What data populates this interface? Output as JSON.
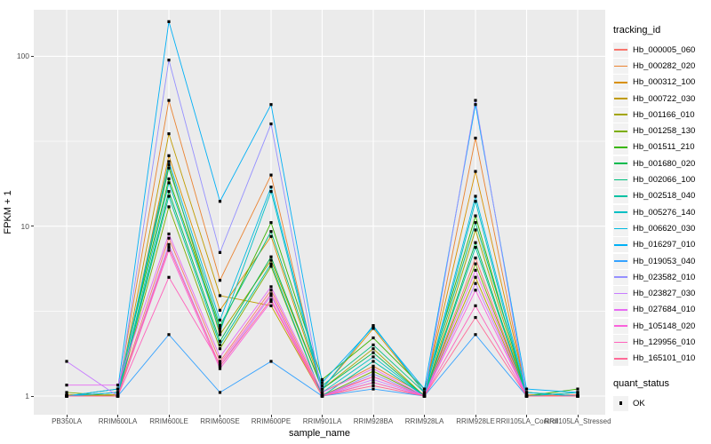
{
  "chart_data": {
    "type": "line",
    "title": "",
    "xlabel": "sample_name",
    "ylabel": "FPKM + 1",
    "y_scale": "log10",
    "y_ticks": [
      {
        "value": 1,
        "label": "1"
      },
      {
        "value": 10,
        "label": "10"
      },
      {
        "value": 100,
        "label": "100"
      }
    ],
    "y_minor_ticks": [
      3.1623,
      31.623
    ],
    "ylim_top_value": 188,
    "grid": true,
    "panel_bg": "#EBEBEB",
    "grid_color": "#FFFFFF",
    "point_color": "#000000",
    "tick_color": "#333333",
    "tick_label_color": "#4D4D4D",
    "categories": [
      "PB350LA",
      "RRIM600LA",
      "RRIM600LE",
      "RRIM600SE",
      "RRIM600PE",
      "RRIM901LA",
      "RRIM928BA",
      "RRIM928LA",
      "RRIM928LE",
      "RRII105LA_Control",
      "RRII105LA_Stressed"
    ],
    "legend_title": "tracking_id",
    "legend_position": "right",
    "series": [
      {
        "name": "Hb_000005_060",
        "color": "#F8766D",
        "values": [
          1.0,
          1.02,
          8.5,
          1.6,
          4.2,
          1.02,
          1.3,
          1.0,
          6.5,
          1.0,
          1.02
        ]
      },
      {
        "name": "Hb_000282_020",
        "color": "#EA8331",
        "values": [
          1.0,
          1.05,
          55,
          4.8,
          20,
          1.05,
          1.5,
          1.02,
          33,
          1.02,
          1.0
        ]
      },
      {
        "name": "Hb_000312_100",
        "color": "#D89000",
        "values": [
          1.02,
          1.0,
          26,
          3.2,
          8.7,
          1.1,
          2.5,
          1.05,
          21,
          1.05,
          1.0
        ]
      },
      {
        "name": "Hb_000722_030",
        "color": "#C09B00",
        "values": [
          1.0,
          1.0,
          35,
          3.9,
          3.4,
          1.0,
          1.2,
          1.0,
          5.0,
          1.0,
          1.0
        ]
      },
      {
        "name": "Hb_001166_010",
        "color": "#A3A500",
        "values": [
          1.0,
          1.02,
          23,
          2.3,
          6.3,
          1.1,
          1.9,
          1.0,
          9.5,
          1.0,
          1.05
        ]
      },
      {
        "name": "Hb_001258_130",
        "color": "#7CAE00",
        "values": [
          1.05,
          1.0,
          13,
          1.9,
          5.8,
          1.0,
          1.4,
          1.0,
          6.0,
          1.0,
          1.0
        ]
      },
      {
        "name": "Hb_001511_210",
        "color": "#39B600",
        "values": [
          1.0,
          1.1,
          19,
          2.5,
          10.5,
          1.25,
          2.2,
          1.1,
          11.5,
          1.0,
          1.1
        ]
      },
      {
        "name": "Hb_001680_020",
        "color": "#00BB4E",
        "values": [
          1.0,
          1.0,
          16,
          2.1,
          6.6,
          1.1,
          1.8,
          1.0,
          8.0,
          1.0,
          1.0
        ]
      },
      {
        "name": "Hb_002066_100",
        "color": "#00BF7D",
        "values": [
          1.0,
          1.05,
          22,
          2.6,
          9.3,
          1.15,
          2.0,
          1.05,
          10.5,
          1.05,
          1.0
        ]
      },
      {
        "name": "Hb_002518_040",
        "color": "#00C1A3",
        "values": [
          1.0,
          1.0,
          15,
          2.0,
          6.0,
          1.0,
          1.6,
          1.0,
          7.5,
          1.0,
          1.0
        ]
      },
      {
        "name": "Hb_005276_140",
        "color": "#00BFC4",
        "values": [
          1.0,
          1.0,
          18,
          2.4,
          16,
          1.05,
          1.7,
          1.0,
          14,
          1.0,
          1.05
        ]
      },
      {
        "name": "Hb_006620_030",
        "color": "#00BAE0",
        "values": [
          1.0,
          1.05,
          24,
          2.8,
          17,
          1.1,
          2.6,
          1.05,
          15,
          1.05,
          1.0
        ]
      },
      {
        "name": "Hb_016297_010",
        "color": "#00B0F6",
        "values": [
          1.0,
          1.1,
          160,
          14.0,
          52,
          1.2,
          2.55,
          1.1,
          52,
          1.1,
          1.05
        ]
      },
      {
        "name": "Hb_019053_040",
        "color": "#35A2FF",
        "values": [
          1.0,
          1.0,
          2.3,
          1.05,
          1.6,
          1.0,
          1.1,
          1.0,
          2.3,
          1.0,
          1.0
        ]
      },
      {
        "name": "Hb_023582_010",
        "color": "#9590FF",
        "values": [
          1.0,
          1.0,
          95,
          7.0,
          40,
          1.0,
          1.35,
          1.0,
          55,
          1.0,
          1.0
        ]
      },
      {
        "name": "Hb_023827_030",
        "color": "#C77CFF",
        "values": [
          1.6,
          1.0,
          7.8,
          1.5,
          3.9,
          1.0,
          1.25,
          1.0,
          4.6,
          1.0,
          1.0
        ]
      },
      {
        "name": "Hb_027684_010",
        "color": "#E76BF3",
        "values": [
          1.16,
          1.16,
          9.0,
          1.7,
          4.4,
          1.05,
          1.45,
          1.0,
          5.5,
          1.0,
          1.0
        ]
      },
      {
        "name": "Hb_105148_020",
        "color": "#FA62DB",
        "values": [
          1.0,
          1.0,
          7.2,
          1.45,
          3.6,
          1.0,
          1.2,
          1.0,
          4.2,
          1.0,
          1.0
        ]
      },
      {
        "name": "Hb_129956_010",
        "color": "#FF62BC",
        "values": [
          1.0,
          1.0,
          5.0,
          1.55,
          4.0,
          1.0,
          1.3,
          1.0,
          3.4,
          1.0,
          1.0
        ]
      },
      {
        "name": "Hb_165101_010",
        "color": "#FF6A98",
        "values": [
          1.0,
          1.0,
          7.5,
          1.5,
          3.7,
          1.0,
          1.15,
          1.0,
          2.9,
          1.0,
          1.0
        ]
      }
    ],
    "quant_legend": {
      "title": "quant_status",
      "items": [
        {
          "label": "OK",
          "marker": "black-square"
        }
      ]
    }
  }
}
